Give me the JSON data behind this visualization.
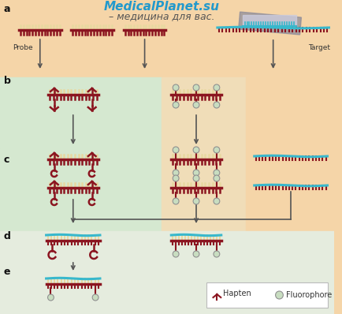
{
  "bg_top": "#f5d5a8",
  "bg_green": "#d5e8d0",
  "bg_orange": "#f0ddb8",
  "bg_bottom": "#e5ecde",
  "probe_color": "#8b1520",
  "target_color": "#38b8cc",
  "fluoro_color": "#c8ddc0",
  "fluoro_border": "#909090",
  "arrow_color": "#555555",
  "label_color": "#333333",
  "title": "MedicalPlanet.su",
  "subtitle": "– медицина для вас.",
  "probe_label": "Probe",
  "target_label": "Target",
  "hapten_label": "Hapten",
  "fluoro_label": "Fluorophore",
  "row_labels": [
    "a",
    "b",
    "c",
    "d",
    "e"
  ]
}
